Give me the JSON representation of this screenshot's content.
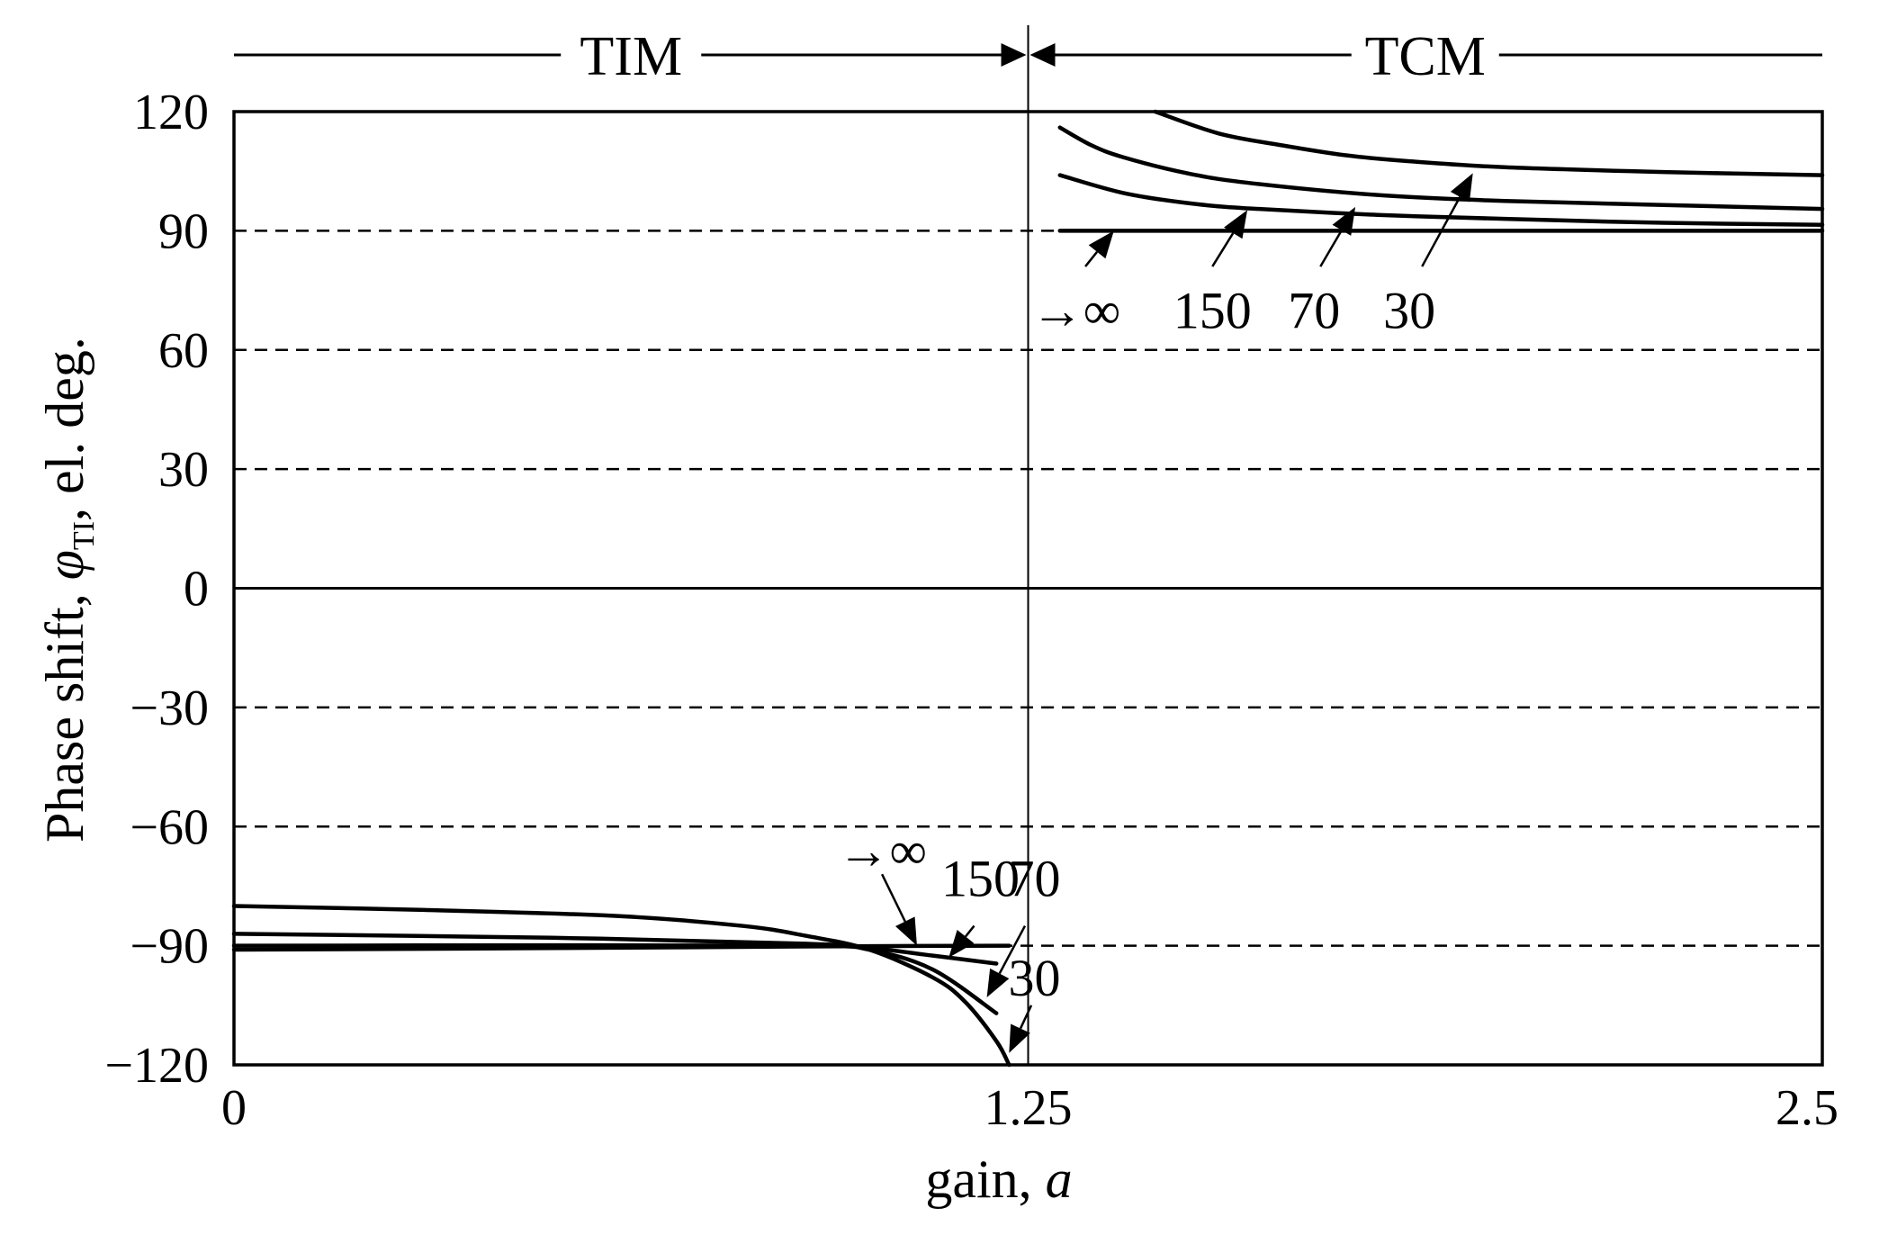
{
  "chart_data": {
    "type": "line",
    "xlabel_text": "gain, ",
    "xlabel_var": "a",
    "ylabel_text": "Phase shift, ",
    "ylabel_var": "φ",
    "ylabel_sub": "TI",
    "ylabel_suffix": ", el. deg.",
    "xlim": [
      0,
      2.5
    ],
    "ylim": [
      -120,
      120
    ],
    "x_ticks": [
      0,
      1.25,
      2.5
    ],
    "x_tick_labels": [
      "0",
      "1.25",
      "2.5"
    ],
    "y_ticks": [
      -120,
      -90,
      -60,
      -30,
      0,
      30,
      60,
      90,
      120
    ],
    "y_tick_labels": [
      "−120",
      "−90",
      "−60",
      "−30",
      "0",
      "30",
      "60",
      "90",
      "120"
    ],
    "dashed_gridlines_y": [
      -90,
      -60,
      -30,
      30,
      60,
      90
    ],
    "solid_gridlines_y": [
      0
    ],
    "boundary_x": 1.25,
    "modes": [
      {
        "label": "TIM",
        "x_range": [
          0,
          1.25
        ]
      },
      {
        "label": "TCM",
        "x_range": [
          1.25,
          2.5
        ]
      }
    ],
    "series": [
      {
        "key": "tim_inf",
        "region": "TIM",
        "x": [
          0,
          0.5,
          1.0,
          1.22
        ],
        "y": [
          -91,
          -90.6,
          -90.1,
          -90
        ]
      },
      {
        "key": "tim_150",
        "region": "TIM",
        "x": [
          0,
          0.5,
          0.9,
          1.0,
          1.1,
          1.2
        ],
        "y": [
          -90,
          -89.9,
          -90,
          -90.6,
          -92.5,
          -94.5
        ]
      },
      {
        "key": "tim_70",
        "region": "TIM",
        "x": [
          0,
          0.5,
          0.9,
          1.0,
          1.1,
          1.2
        ],
        "y": [
          -87,
          -88,
          -89.5,
          -91,
          -96,
          -107
        ]
      },
      {
        "key": "tim_30",
        "region": "TIM",
        "x": [
          0,
          0.3,
          0.6,
          0.8,
          0.9,
          1.0,
          1.1,
          1.15,
          1.2,
          1.22
        ],
        "y": [
          -80,
          -81,
          -82.5,
          -85,
          -87.5,
          -91,
          -98,
          -104,
          -114,
          -120
        ]
      },
      {
        "key": "tcm_inf",
        "region": "TCM",
        "x": [
          1.3,
          1.9,
          2.5
        ],
        "y": [
          90,
          90,
          90
        ]
      },
      {
        "key": "tcm_150",
        "region": "TCM",
        "x": [
          1.3,
          1.4,
          1.5,
          1.6,
          1.8,
          2.0,
          2.25,
          2.5
        ],
        "y": [
          104,
          99.5,
          97,
          95.6,
          94,
          93,
          92,
          91.5
        ]
      },
      {
        "key": "tcm_70",
        "region": "TCM",
        "x": [
          1.3,
          1.35,
          1.4,
          1.5,
          1.6,
          1.8,
          2.0,
          2.25,
          2.5
        ],
        "y": [
          116,
          111.5,
          108.5,
          104.5,
          102,
          99,
          97.5,
          96.5,
          95.5
        ]
      },
      {
        "key": "tcm_30",
        "region": "TCM",
        "x": [
          1.45,
          1.55,
          1.65,
          1.75,
          1.85,
          2.0,
          2.25,
          2.5
        ],
        "y": [
          120,
          114.5,
          111.5,
          109,
          107.5,
          106,
          104.8,
          104
        ]
      }
    ],
    "annotations": [
      {
        "key": "tcm_inf_label",
        "text": "→∞",
        "x": 1.325,
        "y": 70,
        "arrow_from": [
          1.34,
          81
        ],
        "arrow_to": [
          1.385,
          90
        ]
      },
      {
        "key": "tcm_150_label",
        "text": "150",
        "x": 1.54,
        "y": 70,
        "arrow_from": [
          1.54,
          81
        ],
        "arrow_to": [
          1.595,
          95.2
        ]
      },
      {
        "key": "tcm_70_label",
        "text": "70",
        "x": 1.7,
        "y": 70,
        "arrow_from": [
          1.71,
          81
        ],
        "arrow_to": [
          1.765,
          96
        ]
      },
      {
        "key": "tcm_30_label",
        "text": "30",
        "x": 1.85,
        "y": 70,
        "arrow_from": [
          1.87,
          81
        ],
        "arrow_to": [
          1.95,
          104.5
        ]
      },
      {
        "key": "tim_inf_label",
        "text": "→∞",
        "x": 1.02,
        "y": -66,
        "arrow_from": [
          1.02,
          -72
        ],
        "arrow_to": [
          1.075,
          -90
        ]
      },
      {
        "key": "tim_150_label",
        "text": "150",
        "x": 1.175,
        "y": -73,
        "arrow_from": [
          1.165,
          -85
        ],
        "arrow_to": [
          1.125,
          -93
        ]
      },
      {
        "key": "tim_70_label",
        "text": "70",
        "x": 1.26,
        "y": -73,
        "arrow_from": [
          1.245,
          -85
        ],
        "arrow_to": [
          1.185,
          -103
        ]
      },
      {
        "key": "tim_30_label",
        "text": "30",
        "x": 1.26,
        "y": -98,
        "arrow_from": [
          1.255,
          -105
        ],
        "arrow_to": [
          1.22,
          -117
        ]
      }
    ]
  }
}
